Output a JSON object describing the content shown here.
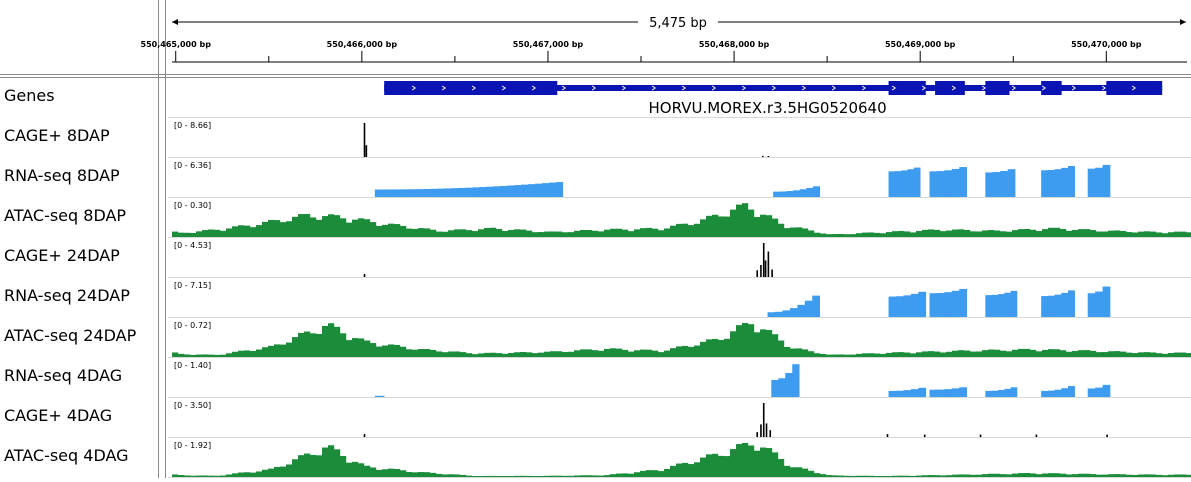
{
  "ruler": {
    "span": "5,475 bp",
    "ticks": [
      {
        "bp": 550465000,
        "label": "550,465,000 bp"
      },
      {
        "bp": 550466000,
        "label": "550,466,000 bp"
      },
      {
        "bp": 550467000,
        "label": "550,467,000 bp"
      },
      {
        "bp": 550468000,
        "label": "550,468,000 bp"
      },
      {
        "bp": 550469000,
        "label": "550,469,000 bp"
      },
      {
        "bp": 550470000,
        "label": "550,470,000 bp"
      }
    ]
  },
  "gene": {
    "name": "HORVU.MOREX.r3.5HG0520640",
    "color": "#0a14b4",
    "start_bp": 550466120,
    "end_bp": 550470300,
    "exons": [
      [
        550466120,
        550467050
      ],
      [
        550468830,
        550469030
      ],
      [
        550469080,
        550469240
      ],
      [
        550469350,
        550469480
      ],
      [
        550469650,
        550469760
      ],
      [
        550470000,
        550470300
      ]
    ]
  },
  "tracks": [
    {
      "id": "genes",
      "label": "Genes",
      "kind": "gene"
    },
    {
      "id": "cage-8dap",
      "label": "CAGE+ 8DAP",
      "range": "[0 - 8.66]",
      "kind": "cage",
      "color": "#000000",
      "peaks": [
        [
          550466010,
          8.66
        ],
        [
          550466020,
          3.0
        ],
        [
          550468150,
          0.3
        ],
        [
          550468180,
          0.2
        ]
      ]
    },
    {
      "id": "rnaseq-8dap",
      "label": "RNA-seq 8DAP",
      "range": "[0 - 6.36]",
      "kind": "signal",
      "color": "#3d9bf0",
      "segments": [
        [
          550466070,
          550467080,
          1.4,
          2.8
        ],
        [
          550468210,
          550468460,
          1.0,
          2.0
        ],
        [
          550468830,
          550469000,
          4.8,
          5.5
        ],
        [
          550469050,
          550469250,
          4.8,
          5.6
        ],
        [
          550469350,
          550469510,
          4.6,
          5.2
        ],
        [
          550469650,
          550469830,
          5.0,
          5.8
        ],
        [
          550469900,
          550470020,
          5.3,
          6.0
        ]
      ]
    },
    {
      "id": "atac-8dap",
      "label": "ATAC-seq 8DAP",
      "range": "[0 - 0.30]",
      "kind": "signal",
      "color": "#1a8c3a",
      "profile": [
        [
          550464990,
          0.03
        ],
        [
          550465200,
          0.06
        ],
        [
          550465400,
          0.1
        ],
        [
          550465700,
          0.18
        ],
        [
          550465900,
          0.16
        ],
        [
          550466100,
          0.11
        ],
        [
          550466400,
          0.05
        ],
        [
          550466700,
          0.07
        ],
        [
          550467000,
          0.04
        ],
        [
          550467300,
          0.06
        ],
        [
          550467600,
          0.07
        ],
        [
          550467800,
          0.13
        ],
        [
          550468050,
          0.26
        ],
        [
          550468250,
          0.1
        ],
        [
          550468500,
          0.02
        ],
        [
          550468800,
          0.04
        ],
        [
          550469100,
          0.06
        ],
        [
          550469400,
          0.05
        ],
        [
          550469700,
          0.07
        ],
        [
          550470000,
          0.05
        ],
        [
          550470260,
          0.04
        ]
      ]
    },
    {
      "id": "cage-24dap",
      "label": "CAGE+ 24DAP",
      "range": "[0 - 4.53]",
      "kind": "cage",
      "color": "#000000",
      "peaks": [
        [
          550466010,
          0.4
        ],
        [
          550468120,
          0.9
        ],
        [
          550468140,
          1.6
        ],
        [
          550468155,
          4.53
        ],
        [
          550468165,
          2.2
        ],
        [
          550468180,
          3.4
        ],
        [
          550468200,
          1.0
        ]
      ]
    },
    {
      "id": "rnaseq-24dap",
      "label": "RNA-seq 24DAP",
      "range": "[0 - 7.15]",
      "kind": "signal",
      "color": "#3d9bf0",
      "segments": [
        [
          550468180,
          550468460,
          1.0,
          4.5
        ],
        [
          550468830,
          550469030,
          4.3,
          5.3
        ],
        [
          550469050,
          550469250,
          5.0,
          5.9
        ],
        [
          550469350,
          550469520,
          4.6,
          5.5
        ],
        [
          550469650,
          550469830,
          4.4,
          5.6
        ],
        [
          550469900,
          550470020,
          5.0,
          6.4
        ]
      ]
    },
    {
      "id": "atac-24dap",
      "label": "ATAC-seq 24DAP",
      "range": "[0 - 0.72]",
      "kind": "signal",
      "color": "#1a8c3a",
      "profile": [
        [
          550464990,
          0.06
        ],
        [
          550465200,
          0.04
        ],
        [
          550465500,
          0.2
        ],
        [
          550465800,
          0.63
        ],
        [
          550466000,
          0.3
        ],
        [
          550466300,
          0.15
        ],
        [
          550466600,
          0.07
        ],
        [
          550467000,
          0.1
        ],
        [
          550467300,
          0.16
        ],
        [
          550467600,
          0.12
        ],
        [
          550467900,
          0.35
        ],
        [
          550468080,
          0.7
        ],
        [
          550468300,
          0.18
        ],
        [
          550468500,
          0.04
        ],
        [
          550468800,
          0.08
        ],
        [
          550469200,
          0.12
        ],
        [
          550469600,
          0.15
        ],
        [
          550469900,
          0.12
        ],
        [
          550470260,
          0.08
        ]
      ]
    },
    {
      "id": "rnaseq-4dag",
      "label": "RNA-seq 4DAG",
      "range": "[0 - 1.40]",
      "kind": "signal",
      "color": "#3d9bf0",
      "segments": [
        [
          550466070,
          550466120,
          0.05,
          0.05
        ],
        [
          550468200,
          550468350,
          0.7,
          1.35
        ],
        [
          550468830,
          550469030,
          0.25,
          0.38
        ],
        [
          550469050,
          550469250,
          0.3,
          0.4
        ],
        [
          550469350,
          550469520,
          0.25,
          0.4
        ],
        [
          550469650,
          550469830,
          0.25,
          0.45
        ],
        [
          550469900,
          550470020,
          0.35,
          0.5
        ]
      ]
    },
    {
      "id": "cage-4dag",
      "label": "CAGE+ 4DAG",
      "range": "[0 - 3.50]",
      "kind": "cage",
      "color": "#000000",
      "peaks": [
        [
          550466010,
          0.3
        ],
        [
          550468120,
          0.5
        ],
        [
          550468140,
          1.3
        ],
        [
          550468155,
          3.5
        ],
        [
          550468170,
          1.4
        ],
        [
          550468190,
          0.7
        ],
        [
          550468820,
          0.3
        ],
        [
          550469020,
          0.25
        ],
        [
          550469320,
          0.25
        ],
        [
          550469620,
          0.25
        ],
        [
          550470000,
          0.25
        ]
      ]
    },
    {
      "id": "atac-4dag",
      "label": "ATAC-seq 4DAG",
      "range": "[0 - 1.92]",
      "kind": "signal",
      "color": "#1a8c3a",
      "profile": [
        [
          550464990,
          0.1
        ],
        [
          550465200,
          0.06
        ],
        [
          550465500,
          0.4
        ],
        [
          550465800,
          1.6
        ],
        [
          550466000,
          0.55
        ],
        [
          550466300,
          0.25
        ],
        [
          550466600,
          0.05
        ],
        [
          550467000,
          0.06
        ],
        [
          550467300,
          0.1
        ],
        [
          550467600,
          0.4
        ],
        [
          550467900,
          1.2
        ],
        [
          550468100,
          1.85
        ],
        [
          550468300,
          0.55
        ],
        [
          550468500,
          0.08
        ],
        [
          550468800,
          0.05
        ],
        [
          550469200,
          0.12
        ],
        [
          550469600,
          0.2
        ],
        [
          550469900,
          0.15
        ],
        [
          550470260,
          0.12
        ]
      ]
    }
  ]
}
